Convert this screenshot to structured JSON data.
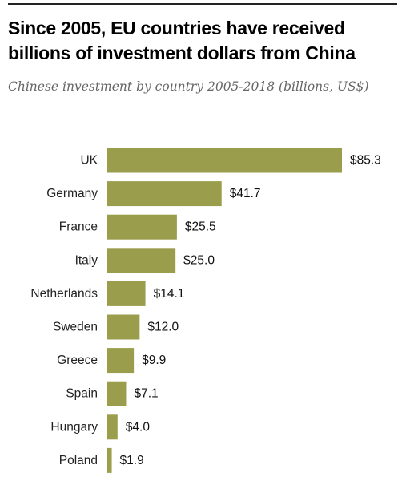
{
  "chart_data": {
    "type": "bar",
    "orientation": "horizontal",
    "title": "Since 2005, EU countries have received billions of investment dollars from China",
    "subtitle": "Chinese investment by country 2005-2018 (billions, US$)",
    "categories": [
      "UK",
      "Germany",
      "France",
      "Italy",
      "Netherlands",
      "Sweden",
      "Greece",
      "Spain",
      "Hungary",
      "Poland"
    ],
    "values": [
      85.3,
      41.7,
      25.5,
      25.0,
      14.1,
      12.0,
      9.9,
      7.1,
      4.0,
      1.9
    ],
    "value_labels": [
      "$85.3",
      "$41.7",
      "$25.5",
      "$25.0",
      "$14.1",
      "$12.0",
      "$9.9",
      "$7.1",
      "$4.0",
      "$1.9"
    ],
    "bar_color": "#9a9e4c",
    "grid": false,
    "legend": "none",
    "xlim": [
      0,
      85.3
    ]
  }
}
